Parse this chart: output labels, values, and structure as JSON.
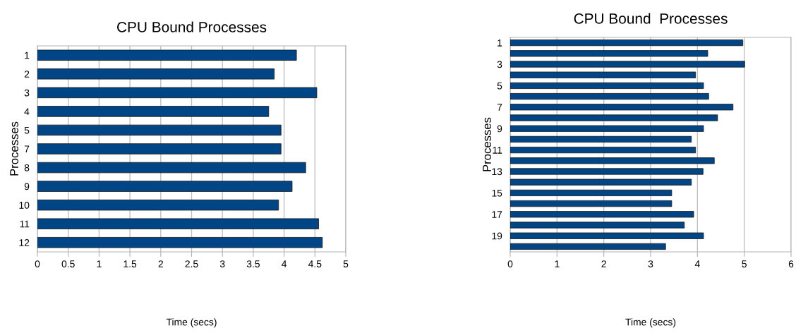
{
  "chart_data": [
    {
      "type": "bar",
      "orientation": "horizontal",
      "title": "CPU Bound Processes",
      "xlabel": "Time (secs)",
      "ylabel": "Processes",
      "categories": [
        "1",
        "2",
        "3",
        "4",
        "5",
        "7",
        "8",
        "9",
        "10",
        "11",
        "12"
      ],
      "values": [
        4.2,
        3.84,
        4.53,
        3.75,
        3.95,
        3.95,
        4.35,
        4.13,
        3.91,
        4.56,
        4.62
      ],
      "color": "#004586",
      "xlim": [
        0,
        5
      ],
      "xticks": [
        0,
        0.5,
        1,
        1.5,
        2,
        2.5,
        3,
        3.5,
        4,
        4.5,
        5
      ],
      "grid": "x"
    },
    {
      "type": "bar",
      "orientation": "horizontal",
      "title": "CPU Bound  Processes",
      "xlabel": "Time (secs)",
      "ylabel": "Processes",
      "categories": [
        "1",
        null,
        "3",
        null,
        "5",
        null,
        "7",
        null,
        "9",
        null,
        "11",
        null,
        "13",
        null,
        "15",
        null,
        "17",
        null,
        "19",
        null
      ],
      "values": [
        4.97,
        4.22,
        5.01,
        3.96,
        4.13,
        4.24,
        4.76,
        4.43,
        4.13,
        3.87,
        3.96,
        4.36,
        4.12,
        3.87,
        3.45,
        3.45,
        3.92,
        3.72,
        4.13,
        3.32
      ],
      "color": "#004586",
      "xlim": [
        0,
        6
      ],
      "xticks": [
        0,
        1,
        2,
        3,
        4,
        5,
        6
      ],
      "grid": "x"
    }
  ]
}
